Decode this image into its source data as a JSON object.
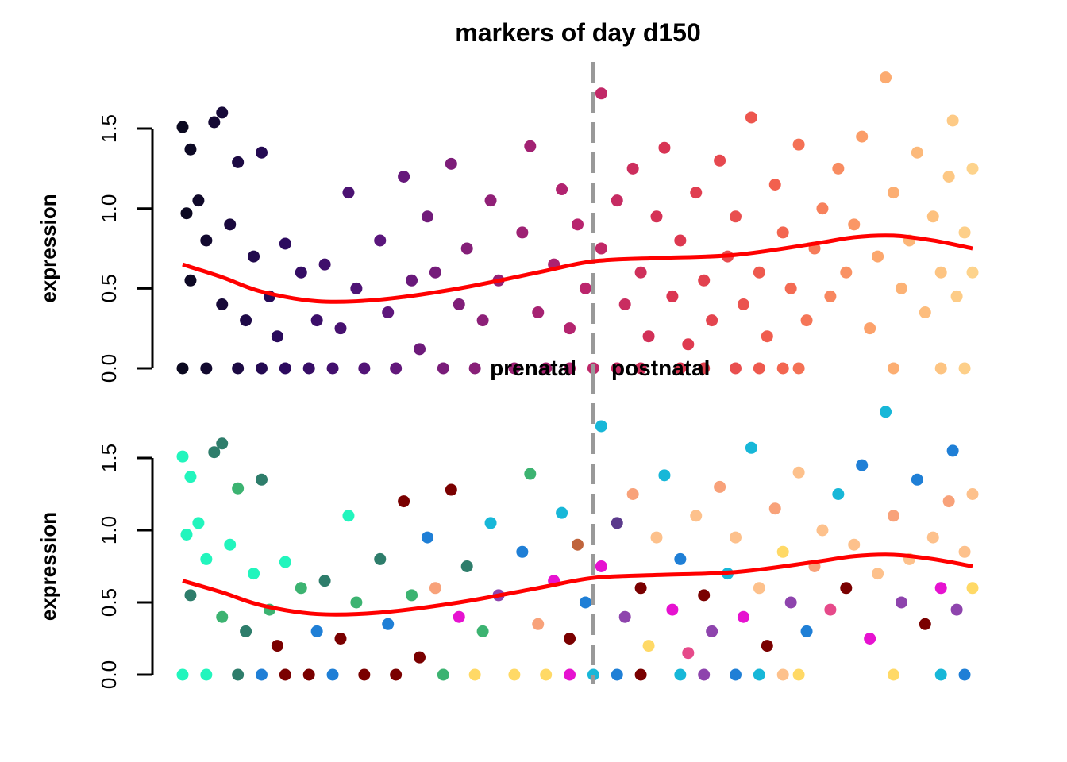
{
  "chart_data": {
    "type": "scatter",
    "title": "markers of day d150",
    "panels": [
      {
        "ylabel": "expression",
        "yticks": [
          "0.0",
          "0.5",
          "1.0",
          "1.5"
        ],
        "ylim": [
          0,
          1.9
        ],
        "coloring": "gradient"
      },
      {
        "ylabel": "expression",
        "yticks": [
          "0.0",
          "0.5",
          "1.0",
          "1.5"
        ],
        "ylim": [
          0,
          1.85
        ],
        "coloring": "categorical"
      }
    ],
    "annotations": {
      "left": "prenatal",
      "right": "postnatal"
    },
    "divider_x": 0.52,
    "grid": false,
    "gradient_colors": [
      "#0b0920",
      "#2a0a5e",
      "#5a167c",
      "#8a2078",
      "#b8246e",
      "#dc3650",
      "#f2604e",
      "#fca56c",
      "#fdd38c"
    ],
    "categorical_colors": [
      "#22f5bd",
      "#2e7d6b",
      "#3cb371",
      "#7a0000",
      "#1f7fd6",
      "#e612d0",
      "#f8a27a",
      "#17b7d8",
      "#8e44ad",
      "#ffd966",
      "#c0643c",
      "#5b3a8c",
      "#fdc18c",
      "#e64a8a"
    ],
    "smooth_color": "#ff0000",
    "divider_color": "#999999",
    "smooth": {
      "x": [
        0,
        0.05,
        0.1,
        0.17,
        0.25,
        0.35,
        0.45,
        0.52,
        0.6,
        0.7,
        0.8,
        0.85,
        0.9,
        0.95,
        1
      ],
      "y": [
        0.65,
        0.57,
        0.48,
        0.42,
        0.43,
        0.5,
        0.6,
        0.67,
        0.69,
        0.71,
        0.78,
        0.82,
        0.83,
        0.8,
        0.75
      ]
    },
    "points": [
      [
        0.0,
        1.51,
        0
      ],
      [
        0.01,
        1.37,
        0
      ],
      [
        0.005,
        0.97,
        0
      ],
      [
        0.01,
        0.55,
        1
      ],
      [
        0.02,
        1.05,
        0
      ],
      [
        0.03,
        0.8,
        0
      ],
      [
        0.04,
        1.54,
        1
      ],
      [
        0.05,
        1.6,
        1
      ],
      [
        0.05,
        0.4,
        2
      ],
      [
        0.06,
        0.9,
        0
      ],
      [
        0.07,
        1.29,
        2
      ],
      [
        0.08,
        0.3,
        1
      ],
      [
        0.09,
        0.7,
        0
      ],
      [
        0.1,
        1.35,
        1
      ],
      [
        0.11,
        0.45,
        2
      ],
      [
        0.12,
        0.2,
        3
      ],
      [
        0.13,
        0.78,
        0
      ],
      [
        0.15,
        0.6,
        2
      ],
      [
        0.17,
        0.3,
        4
      ],
      [
        0.18,
        0.65,
        1
      ],
      [
        0.2,
        0.25,
        3
      ],
      [
        0.21,
        1.1,
        0
      ],
      [
        0.22,
        0.5,
        2
      ],
      [
        0.23,
        0.0,
        3
      ],
      [
        0.25,
        0.8,
        1
      ],
      [
        0.26,
        0.35,
        4
      ],
      [
        0.28,
        1.2,
        3
      ],
      [
        0.29,
        0.55,
        2
      ],
      [
        0.3,
        0.12,
        3
      ],
      [
        0.31,
        0.95,
        4
      ],
      [
        0.32,
        0.6,
        6
      ],
      [
        0.34,
        1.28,
        3
      ],
      [
        0.35,
        0.4,
        5
      ],
      [
        0.36,
        0.75,
        1
      ],
      [
        0.38,
        0.3,
        2
      ],
      [
        0.39,
        1.05,
        7
      ],
      [
        0.4,
        0.55,
        8
      ],
      [
        0.42,
        0.0,
        9
      ],
      [
        0.43,
        0.85,
        4
      ],
      [
        0.44,
        1.39,
        2
      ],
      [
        0.45,
        0.35,
        6
      ],
      [
        0.47,
        0.65,
        5
      ],
      [
        0.48,
        1.12,
        7
      ],
      [
        0.49,
        0.25,
        3
      ],
      [
        0.5,
        0.9,
        10
      ],
      [
        0.51,
        0.5,
        4
      ],
      [
        0.53,
        1.72,
        7
      ],
      [
        0.53,
        0.75,
        5
      ],
      [
        0.55,
        1.05,
        11
      ],
      [
        0.56,
        0.4,
        8
      ],
      [
        0.57,
        1.25,
        6
      ],
      [
        0.58,
        0.6,
        3
      ],
      [
        0.59,
        0.2,
        9
      ],
      [
        0.6,
        0.95,
        12
      ],
      [
        0.61,
        1.38,
        7
      ],
      [
        0.62,
        0.45,
        5
      ],
      [
        0.63,
        0.8,
        4
      ],
      [
        0.64,
        0.15,
        13
      ],
      [
        0.65,
        1.1,
        12
      ],
      [
        0.66,
        0.55,
        3
      ],
      [
        0.67,
        0.3,
        8
      ],
      [
        0.68,
        1.3,
        6
      ],
      [
        0.69,
        0.7,
        7
      ],
      [
        0.7,
        0.95,
        12
      ],
      [
        0.71,
        0.4,
        5
      ],
      [
        0.72,
        1.57,
        7
      ],
      [
        0.73,
        0.6,
        12
      ],
      [
        0.74,
        0.2,
        3
      ],
      [
        0.75,
        1.15,
        6
      ],
      [
        0.76,
        0.85,
        9
      ],
      [
        0.77,
        0.5,
        8
      ],
      [
        0.78,
        1.4,
        12
      ],
      [
        0.79,
        0.3,
        4
      ],
      [
        0.8,
        0.75,
        6
      ],
      [
        0.81,
        1.0,
        12
      ],
      [
        0.82,
        0.45,
        13
      ],
      [
        0.83,
        1.25,
        7
      ],
      [
        0.84,
        0.6,
        3
      ],
      [
        0.85,
        0.9,
        12
      ],
      [
        0.86,
        1.45,
        4
      ],
      [
        0.87,
        0.25,
        5
      ],
      [
        0.88,
        0.7,
        12
      ],
      [
        0.89,
        1.82,
        7
      ],
      [
        0.9,
        1.1,
        6
      ],
      [
        0.91,
        0.5,
        8
      ],
      [
        0.92,
        0.8,
        12
      ],
      [
        0.93,
        1.35,
        4
      ],
      [
        0.94,
        0.35,
        3
      ],
      [
        0.95,
        0.95,
        12
      ],
      [
        0.96,
        0.6,
        5
      ],
      [
        0.97,
        1.2,
        6
      ],
      [
        0.98,
        0.45,
        8
      ],
      [
        0.99,
        0.85,
        12
      ],
      [
        1.0,
        1.25,
        12
      ],
      [
        1.0,
        0.6,
        9
      ],
      [
        0.975,
        1.55,
        4
      ],
      [
        0.9,
        0.0,
        9
      ],
      [
        0.96,
        0.0,
        7
      ],
      [
        0.99,
        0.0,
        4
      ],
      [
        0.0,
        0.0,
        0
      ],
      [
        0.03,
        0.0,
        0
      ],
      [
        0.07,
        0.0,
        1
      ],
      [
        0.1,
        0.0,
        4
      ],
      [
        0.13,
        0.0,
        3
      ],
      [
        0.16,
        0.0,
        3
      ],
      [
        0.19,
        0.0,
        4
      ],
      [
        0.27,
        0.0,
        3
      ],
      [
        0.33,
        0.0,
        2
      ],
      [
        0.37,
        0.0,
        9
      ],
      [
        0.46,
        0.0,
        9
      ],
      [
        0.49,
        0.0,
        5
      ],
      [
        0.52,
        0.0,
        7
      ],
      [
        0.55,
        0.0,
        4
      ],
      [
        0.58,
        0.0,
        3
      ],
      [
        0.63,
        0.0,
        7
      ],
      [
        0.66,
        0.0,
        8
      ],
      [
        0.7,
        0.0,
        4
      ],
      [
        0.73,
        0.0,
        7
      ],
      [
        0.76,
        0.0,
        12
      ],
      [
        0.78,
        0.0,
        9
      ]
    ]
  }
}
